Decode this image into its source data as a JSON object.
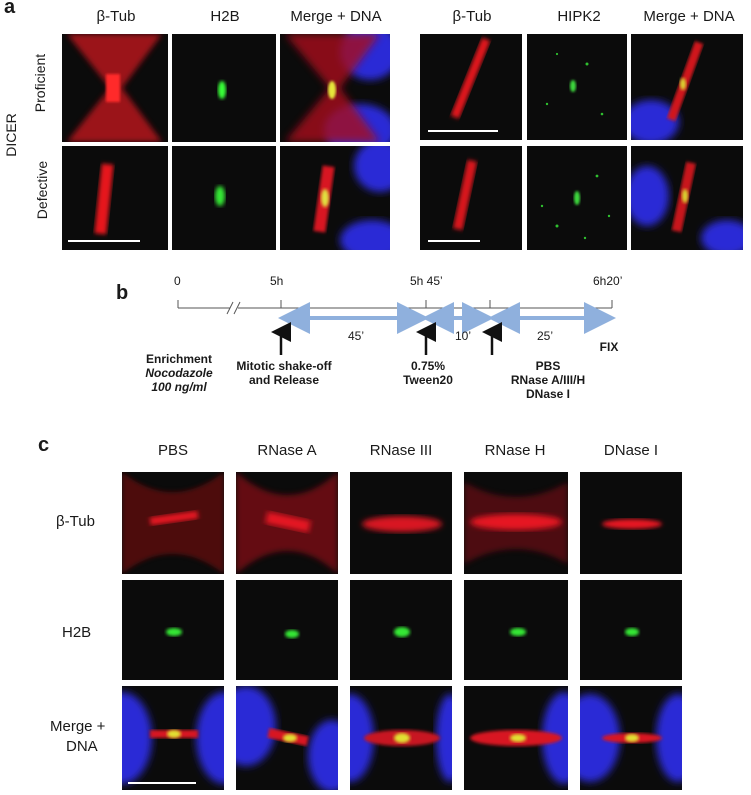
{
  "panel_a": {
    "letter": "a",
    "side_label": "DICER",
    "row_labels": [
      "Proficient",
      "Defective"
    ],
    "left_headers": [
      "β-Tub",
      "H2B",
      "Merge + DNA"
    ],
    "right_headers": [
      "β-Tub",
      "HIPK2",
      "Merge + DNA"
    ]
  },
  "panel_b": {
    "letter": "b",
    "time_labels": [
      "0",
      "5h",
      "5h 45’",
      "6h20’"
    ],
    "interval_labels": [
      "45’",
      "10’",
      "25’"
    ],
    "enrichment": [
      "Enrichment",
      "Nocodazole",
      "100 ng/ml"
    ],
    "shakeoff": [
      "Mitotic shake-off",
      "and Release"
    ],
    "tween": [
      "0.75%",
      "Tween20"
    ],
    "treatments": [
      "PBS",
      "RNase A/III/H",
      "DNase I"
    ],
    "fix": "FIX",
    "colors": {
      "arrow": "#8fb0dd",
      "axis": "#555555"
    }
  },
  "panel_c": {
    "letter": "c",
    "col_headers": [
      "PBS",
      "RNase A",
      "RNase III",
      "RNase H",
      "DNase I"
    ],
    "row_labels": [
      "β-Tub",
      "H2B",
      "Merge +",
      "DNA"
    ]
  }
}
